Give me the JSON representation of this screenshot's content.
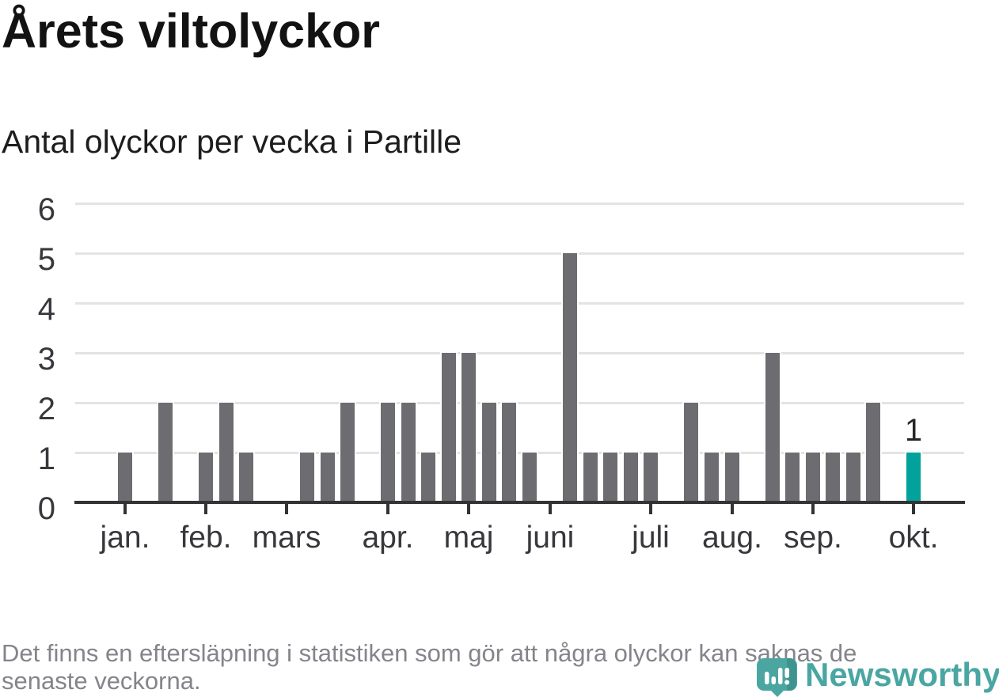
{
  "page": {
    "title": "Årets viltolyckor",
    "subtitle": "Antal olyckor per vecka i Partille",
    "footnote_lines": [
      "Det finns en eftersläpning i statistiken som gör att några olyckor kan saknas de",
      "senaste veckorna."
    ],
    "brand": {
      "name": "Newsworthy",
      "icon": "speech-bubble-bar-chart-icon"
    }
  },
  "colors": {
    "bar": "#6c6c71",
    "bar_highlight": "#00a29b",
    "gridline": "#e3e3e3",
    "axis": "#333333",
    "axis_text": "#37373c",
    "title_text": "#121212",
    "footnote_text": "#84848b",
    "brand_teal": "#4aa6a2"
  },
  "chart_data": {
    "type": "bar",
    "title": "Årets viltolyckor",
    "subtitle": "Antal olyckor per vecka i Partille",
    "xlabel": "",
    "ylabel": "",
    "x_unit": "vecka (week of year)",
    "ylim": [
      0,
      6
    ],
    "yticks": [
      0,
      1,
      2,
      3,
      4,
      5,
      6
    ],
    "grid": true,
    "legend": "none",
    "x_ticks": [
      {
        "label": "jan.",
        "week": 1
      },
      {
        "label": "feb.",
        "week": 5
      },
      {
        "label": "mars",
        "week": 9
      },
      {
        "label": "apr.",
        "week": 14
      },
      {
        "label": "maj",
        "week": 18
      },
      {
        "label": "juni",
        "week": 22
      },
      {
        "label": "juli",
        "week": 27
      },
      {
        "label": "aug.",
        "week": 31
      },
      {
        "label": "sep.",
        "week": 35
      },
      {
        "label": "okt.",
        "week": 40
      }
    ],
    "series": [
      {
        "name": "Antal olyckor per vecka",
        "points": [
          {
            "week": 1,
            "value": 1
          },
          {
            "week": 2,
            "value": 0
          },
          {
            "week": 3,
            "value": 2
          },
          {
            "week": 4,
            "value": 0
          },
          {
            "week": 5,
            "value": 1
          },
          {
            "week": 6,
            "value": 2
          },
          {
            "week": 7,
            "value": 1
          },
          {
            "week": 8,
            "value": 0
          },
          {
            "week": 9,
            "value": 0
          },
          {
            "week": 10,
            "value": 1
          },
          {
            "week": 11,
            "value": 1
          },
          {
            "week": 12,
            "value": 2
          },
          {
            "week": 13,
            "value": 0
          },
          {
            "week": 14,
            "value": 2
          },
          {
            "week": 15,
            "value": 2
          },
          {
            "week": 16,
            "value": 1
          },
          {
            "week": 17,
            "value": 3
          },
          {
            "week": 18,
            "value": 3
          },
          {
            "week": 19,
            "value": 2
          },
          {
            "week": 20,
            "value": 2
          },
          {
            "week": 21,
            "value": 1
          },
          {
            "week": 22,
            "value": 0
          },
          {
            "week": 23,
            "value": 5
          },
          {
            "week": 24,
            "value": 1
          },
          {
            "week": 25,
            "value": 1
          },
          {
            "week": 26,
            "value": 1
          },
          {
            "week": 27,
            "value": 1
          },
          {
            "week": 28,
            "value": 0
          },
          {
            "week": 29,
            "value": 2
          },
          {
            "week": 30,
            "value": 1
          },
          {
            "week": 31,
            "value": 1
          },
          {
            "week": 32,
            "value": 0
          },
          {
            "week": 33,
            "value": 3
          },
          {
            "week": 34,
            "value": 1
          },
          {
            "week": 35,
            "value": 1
          },
          {
            "week": 36,
            "value": 1
          },
          {
            "week": 37,
            "value": 1
          },
          {
            "week": 38,
            "value": 2
          },
          {
            "week": 39,
            "value": 0
          },
          {
            "week": 40,
            "value": 1,
            "highlight": true
          }
        ]
      }
    ],
    "annotation": {
      "week": 40,
      "label": "1"
    }
  }
}
